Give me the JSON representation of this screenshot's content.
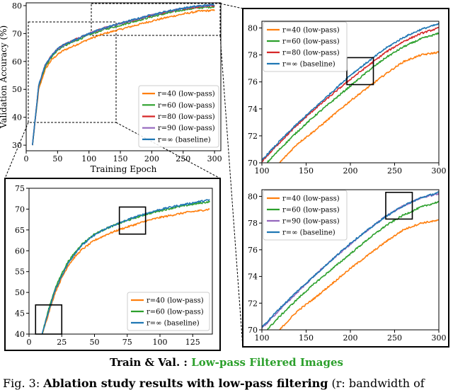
{
  "colors": {
    "r40": "#ff7f0e",
    "r60": "#2ca02c",
    "r80": "#d62728",
    "r90": "#9467bd",
    "rinf": "#1f77b4"
  },
  "subtitle": {
    "prefix": "Train & Val. : ",
    "highlight": "Low-pass Filtered Images"
  },
  "caption": {
    "label": "Fig. 3:",
    "bold": "Ablation study results with low-pass filtering",
    "rest": "(r: bandwidth of"
  },
  "chart_data": [
    {
      "id": "main",
      "type": "line",
      "xlabel": "Training Epoch",
      "ylabel": "Validation Accuracy (%)",
      "xlim": [
        0,
        310
      ],
      "ylim": [
        28,
        81
      ],
      "xticks": [
        0,
        50,
        100,
        150,
        200,
        250,
        300
      ],
      "yticks": [
        30,
        40,
        50,
        60,
        70,
        80
      ],
      "legend_position": "bottom-right",
      "series": [
        {
          "name": "r=40 (low-pass)",
          "key": "r40",
          "x": [
            10,
            20,
            30,
            40,
            50,
            60,
            80,
            100,
            125,
            150,
            175,
            200,
            225,
            250,
            275,
            300
          ],
          "y": [
            30,
            50,
            57,
            60.5,
            62.5,
            64,
            66,
            68,
            70,
            71.5,
            73,
            74.5,
            75.8,
            77,
            78,
            78.3
          ]
        },
        {
          "name": "r=60 (low-pass)",
          "key": "r60",
          "x": [
            10,
            20,
            30,
            40,
            50,
            60,
            80,
            100,
            125,
            150,
            175,
            200,
            225,
            250,
            275,
            300
          ],
          "y": [
            30,
            51,
            58,
            61.5,
            64,
            65.5,
            67.5,
            69.5,
            71.5,
            73,
            74.5,
            76,
            77.3,
            78.5,
            79.2,
            79.6
          ]
        },
        {
          "name": "r=80 (low-pass)",
          "key": "r80",
          "x": [
            10,
            20,
            30,
            40,
            50,
            60,
            80,
            100,
            125,
            150,
            175,
            200,
            225,
            250,
            275,
            300
          ],
          "y": [
            30,
            51.5,
            58.5,
            62,
            64.5,
            66,
            68,
            70,
            72,
            73.5,
            75,
            76.5,
            77.8,
            78.9,
            79.6,
            80
          ]
        },
        {
          "name": "r=90 (low-pass)",
          "key": "r90",
          "x": [
            10,
            20,
            30,
            40,
            50,
            60,
            80,
            100,
            125,
            150,
            175,
            200,
            225,
            250,
            275,
            300
          ],
          "y": [
            30,
            51.5,
            58.5,
            62,
            64.5,
            66,
            68,
            70,
            72,
            73.6,
            75.1,
            76.6,
            77.9,
            79,
            79.8,
            80.2
          ]
        },
        {
          "name": "r=∞ (baseline)",
          "key": "rinf",
          "x": [
            10,
            20,
            30,
            40,
            50,
            60,
            80,
            100,
            125,
            150,
            175,
            200,
            225,
            250,
            275,
            300
          ],
          "y": [
            30,
            51.5,
            58.5,
            62,
            64.5,
            66,
            68,
            70,
            72,
            73.7,
            75.2,
            76.7,
            78,
            79.1,
            79.9,
            80.3
          ]
        }
      ]
    },
    {
      "id": "zoom_early",
      "type": "line",
      "xlim": [
        0,
        140
      ],
      "ylim": [
        40,
        75
      ],
      "xticks": [
        0,
        25,
        50,
        75,
        100,
        125
      ],
      "yticks": [
        40,
        45,
        50,
        55,
        60,
        65,
        70,
        75
      ],
      "legend_position": "bottom-right",
      "series": [
        {
          "name": "r=40 (low-pass)",
          "key": "r40",
          "x": [
            10,
            15,
            20,
            25,
            30,
            35,
            40,
            50,
            60,
            70,
            80,
            90,
            100,
            110,
            120,
            130,
            138
          ],
          "y": [
            40,
            45,
            50,
            53.5,
            56.5,
            58.5,
            60.2,
            62.5,
            64,
            65.2,
            66.2,
            67.2,
            68,
            68.6,
            69.2,
            69.6,
            70
          ]
        },
        {
          "name": "r=60 (low-pass)",
          "key": "r60",
          "x": [
            10,
            15,
            20,
            25,
            30,
            35,
            40,
            50,
            60,
            70,
            80,
            90,
            100,
            110,
            120,
            130,
            138
          ],
          "y": [
            40,
            46,
            51,
            54.5,
            57.5,
            59.5,
            61.5,
            64,
            65.5,
            66.7,
            67.8,
            68.8,
            69.6,
            70.3,
            70.9,
            71.4,
            71.8
          ]
        },
        {
          "name": "r=∞ (baseline)",
          "key": "rinf",
          "x": [
            10,
            15,
            20,
            25,
            30,
            35,
            40,
            50,
            60,
            70,
            80,
            90,
            100,
            110,
            120,
            130,
            138
          ],
          "y": [
            40,
            45.5,
            50.5,
            54,
            57,
            59.3,
            61.2,
            63.8,
            65.5,
            66.8,
            68,
            69,
            69.9,
            70.6,
            71.2,
            71.8,
            72.2
          ]
        }
      ]
    },
    {
      "id": "zoom_late_a",
      "type": "line",
      "xlim": [
        100,
        300
      ],
      "ylim": [
        70,
        80.5
      ],
      "xticks": [
        100,
        150,
        200,
        250,
        300
      ],
      "yticks": [
        70,
        72,
        74,
        76,
        78,
        80
      ],
      "legend_position": "top-left",
      "series": [
        {
          "name": "r=40 (low-pass)",
          "key": "r40",
          "x": [
            120,
            140,
            160,
            180,
            200,
            220,
            240,
            260,
            280,
            300
          ],
          "y": [
            70,
            71.4,
            72.4,
            73.5,
            74.6,
            75.6,
            76.6,
            77.5,
            78,
            78.2
          ]
        },
        {
          "name": "r=60 (low-pass)",
          "key": "r60",
          "x": [
            100,
            120,
            140,
            160,
            180,
            200,
            220,
            240,
            260,
            280,
            300
          ],
          "y": [
            69.6,
            71,
            72.3,
            73.5,
            74.6,
            75.7,
            76.8,
            77.8,
            78.6,
            79.2,
            79.6
          ]
        },
        {
          "name": "r=80 (low-pass)",
          "key": "r80",
          "x": [
            100,
            120,
            140,
            160,
            180,
            200,
            220,
            240,
            260,
            280,
            300
          ],
          "y": [
            70.1,
            71.5,
            72.8,
            74,
            75.1,
            76.2,
            77.2,
            78.2,
            79,
            79.6,
            80
          ]
        },
        {
          "name": "r=∞ (baseline)",
          "key": "rinf",
          "x": [
            100,
            120,
            140,
            160,
            180,
            200,
            220,
            240,
            260,
            280,
            300
          ],
          "y": [
            70.2,
            71.6,
            72.9,
            74.1,
            75.3,
            76.5,
            77.5,
            78.5,
            79.3,
            79.9,
            80.3
          ]
        }
      ]
    },
    {
      "id": "zoom_late_b",
      "type": "line",
      "xlim": [
        100,
        300
      ],
      "ylim": [
        70,
        80.5
      ],
      "xticks": [
        100,
        150,
        200,
        250,
        300
      ],
      "yticks": [
        70,
        72,
        74,
        76,
        78,
        80
      ],
      "legend_position": "top-left",
      "series": [
        {
          "name": "r=40 (low-pass)",
          "key": "r40",
          "x": [
            120,
            140,
            160,
            180,
            200,
            220,
            240,
            260,
            280,
            300
          ],
          "y": [
            70,
            71.4,
            72.4,
            73.5,
            74.6,
            75.6,
            76.6,
            77.5,
            78,
            78.2
          ]
        },
        {
          "name": "r=60 (low-pass)",
          "key": "r60",
          "x": [
            100,
            120,
            140,
            160,
            180,
            200,
            220,
            240,
            260,
            280,
            300
          ],
          "y": [
            69.6,
            71,
            72.3,
            73.5,
            74.6,
            75.7,
            76.8,
            77.8,
            78.6,
            79.2,
            79.6
          ]
        },
        {
          "name": "r=90 (low-pass)",
          "key": "r90",
          "x": [
            100,
            120,
            140,
            160,
            180,
            200,
            220,
            240,
            260,
            280,
            300
          ],
          "y": [
            70.1,
            71.5,
            72.8,
            74.1,
            75.3,
            76.4,
            77.5,
            78.5,
            79.3,
            79.9,
            80.2
          ]
        },
        {
          "name": "r=∞ (baseline)",
          "key": "rinf",
          "x": [
            100,
            120,
            140,
            160,
            180,
            200,
            220,
            240,
            260,
            280,
            300
          ],
          "y": [
            70.2,
            71.6,
            72.9,
            74.1,
            75.3,
            76.5,
            77.5,
            78.5,
            79.3,
            79.9,
            80.3
          ]
        }
      ]
    }
  ]
}
